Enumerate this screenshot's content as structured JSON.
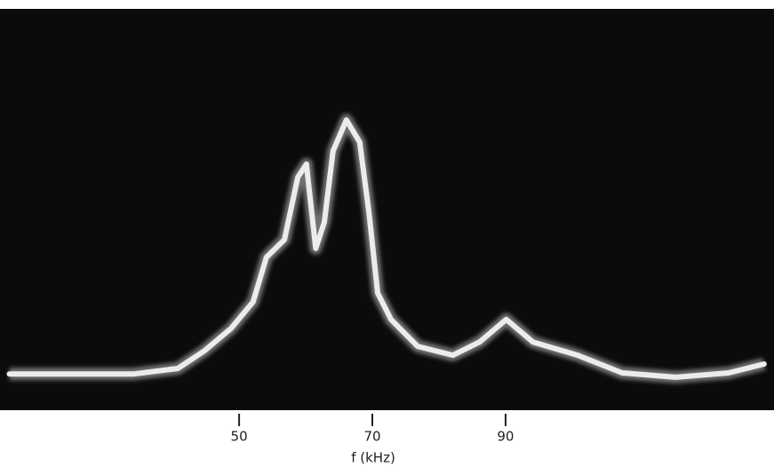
{
  "chart_data": {
    "type": "line",
    "x_label": "f (kHz)",
    "x": [
      15.5,
      34.1,
      40.8,
      44.8,
      48.8,
      52.1,
      54.1,
      56.8,
      58.8,
      60.1,
      61.5,
      62.8,
      64.1,
      66.1,
      68.1,
      69.5,
      70.8,
      72.8,
      76.8,
      82.1,
      86.1,
      90.1,
      94.1,
      100.8,
      107.5,
      115.5,
      123.5,
      128.8
    ],
    "values": [
      9,
      9,
      10.4,
      14.8,
      20.4,
      27,
      38.1,
      42.5,
      58,
      61.3,
      40.3,
      46.9,
      64.6,
      72.3,
      66.8,
      49.1,
      29.2,
      22.6,
      15.9,
      13.7,
      17,
      22.6,
      17,
      13.7,
      9.3,
      8.2,
      9.3,
      11.5
    ],
    "color": "#ececec",
    "background": "#0b0b0b",
    "xlim": [
      14.1,
      130.3
    ],
    "ylim": [
      0,
      100
    ],
    "xticks": [
      50,
      70,
      90
    ]
  }
}
